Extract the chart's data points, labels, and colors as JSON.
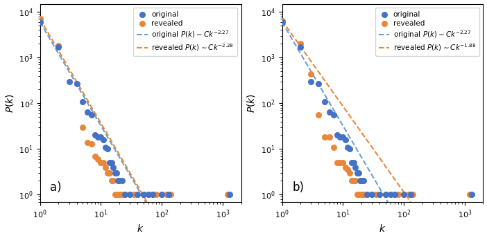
{
  "panel_a": {
    "label": "a)",
    "original_points": [
      [
        1,
        6000
      ],
      [
        2,
        1700
      ],
      [
        3,
        300
      ],
      [
        4,
        270
      ],
      [
        5,
        110
      ],
      [
        6,
        65
      ],
      [
        7,
        55
      ],
      [
        8,
        20
      ],
      [
        9,
        18
      ],
      [
        10,
        18
      ],
      [
        11,
        16
      ],
      [
        12,
        11
      ],
      [
        13,
        10
      ],
      [
        14,
        5
      ],
      [
        15,
        5
      ],
      [
        16,
        4
      ],
      [
        17,
        3
      ],
      [
        18,
        3
      ],
      [
        19,
        2
      ],
      [
        20,
        2
      ],
      [
        22,
        2
      ],
      [
        25,
        1
      ],
      [
        30,
        1
      ],
      [
        40,
        1
      ],
      [
        50,
        1
      ],
      [
        60,
        1
      ],
      [
        70,
        1
      ],
      [
        100,
        1
      ],
      [
        130,
        1
      ],
      [
        1300,
        1
      ]
    ],
    "revealed_points": [
      [
        1,
        7000
      ],
      [
        2,
        1800
      ],
      [
        5,
        30
      ],
      [
        6,
        14
      ],
      [
        7,
        13
      ],
      [
        8,
        7
      ],
      [
        9,
        6
      ],
      [
        10,
        5
      ],
      [
        11,
        5
      ],
      [
        12,
        4
      ],
      [
        13,
        3
      ],
      [
        14,
        3
      ],
      [
        15,
        2
      ],
      [
        16,
        2
      ],
      [
        17,
        1
      ],
      [
        18,
        1
      ],
      [
        20,
        1
      ],
      [
        22,
        1
      ],
      [
        25,
        1
      ],
      [
        30,
        1
      ],
      [
        35,
        1
      ],
      [
        40,
        1
      ],
      [
        50,
        1
      ],
      [
        60,
        1
      ],
      [
        70,
        1
      ],
      [
        80,
        1
      ],
      [
        100,
        1
      ],
      [
        120,
        1
      ],
      [
        140,
        1
      ],
      [
        1200,
        1
      ]
    ],
    "orig_fit_exp": -2.27,
    "orig_fit_C": 6000,
    "rev_fit_exp": -2.28,
    "rev_fit_C": 7000,
    "orig_fit_label": "original $P(k)\\sim Ck^{-2.27}$",
    "rev_fit_label": "revealed $P(k)\\sim Ck^{-2.28}$"
  },
  "panel_b": {
    "label": "b)",
    "original_points": [
      [
        1,
        6000
      ],
      [
        2,
        1700
      ],
      [
        3,
        300
      ],
      [
        4,
        270
      ],
      [
        5,
        110
      ],
      [
        6,
        65
      ],
      [
        7,
        55
      ],
      [
        8,
        20
      ],
      [
        9,
        18
      ],
      [
        10,
        18
      ],
      [
        11,
        16
      ],
      [
        12,
        11
      ],
      [
        13,
        10
      ],
      [
        14,
        5
      ],
      [
        15,
        5
      ],
      [
        16,
        4
      ],
      [
        17,
        3
      ],
      [
        18,
        3
      ],
      [
        19,
        2
      ],
      [
        20,
        2
      ],
      [
        22,
        2
      ],
      [
        25,
        1
      ],
      [
        30,
        1
      ],
      [
        40,
        1
      ],
      [
        50,
        1
      ],
      [
        60,
        1
      ],
      [
        70,
        1
      ],
      [
        100,
        1
      ],
      [
        130,
        1
      ],
      [
        1300,
        1
      ]
    ],
    "revealed_points": [
      [
        1,
        6500
      ],
      [
        2,
        2000
      ],
      [
        3,
        430
      ],
      [
        4,
        55
      ],
      [
        5,
        18
      ],
      [
        6,
        18
      ],
      [
        7,
        11
      ],
      [
        8,
        5
      ],
      [
        9,
        5
      ],
      [
        10,
        5
      ],
      [
        11,
        4
      ],
      [
        12,
        3.5
      ],
      [
        13,
        3
      ],
      [
        14,
        2
      ],
      [
        15,
        2
      ],
      [
        16,
        2
      ],
      [
        17,
        1
      ],
      [
        18,
        1
      ],
      [
        20,
        1
      ],
      [
        22,
        1
      ],
      [
        25,
        1
      ],
      [
        30,
        1
      ],
      [
        35,
        1
      ],
      [
        40,
        1
      ],
      [
        50,
        1
      ],
      [
        60,
        1
      ],
      [
        70,
        1
      ],
      [
        80,
        1
      ],
      [
        100,
        1
      ],
      [
        120,
        1
      ],
      [
        140,
        1
      ],
      [
        1200,
        1
      ]
    ],
    "orig_fit_exp": -2.27,
    "orig_fit_C": 6000,
    "rev_fit_exp": -1.88,
    "rev_fit_C": 6500,
    "orig_fit_label": "original $P(k)\\sim Ck^{-2.27}$",
    "rev_fit_label": "revealed $P(k)\\sim Ck^{-1.88}$"
  },
  "blue_color": "#4472C4",
  "orange_color": "#E8873A",
  "blue_line_color": "#6B9FD4",
  "orange_line_color": "#E8873A",
  "xlabel": "$k$",
  "ylabel": "$P(k)$",
  "xlim": [
    1,
    2000
  ],
  "ylim": [
    0.7,
    15000
  ],
  "dot_size": 30,
  "legend_fontsize": 7.5,
  "axis_fontsize": 10
}
